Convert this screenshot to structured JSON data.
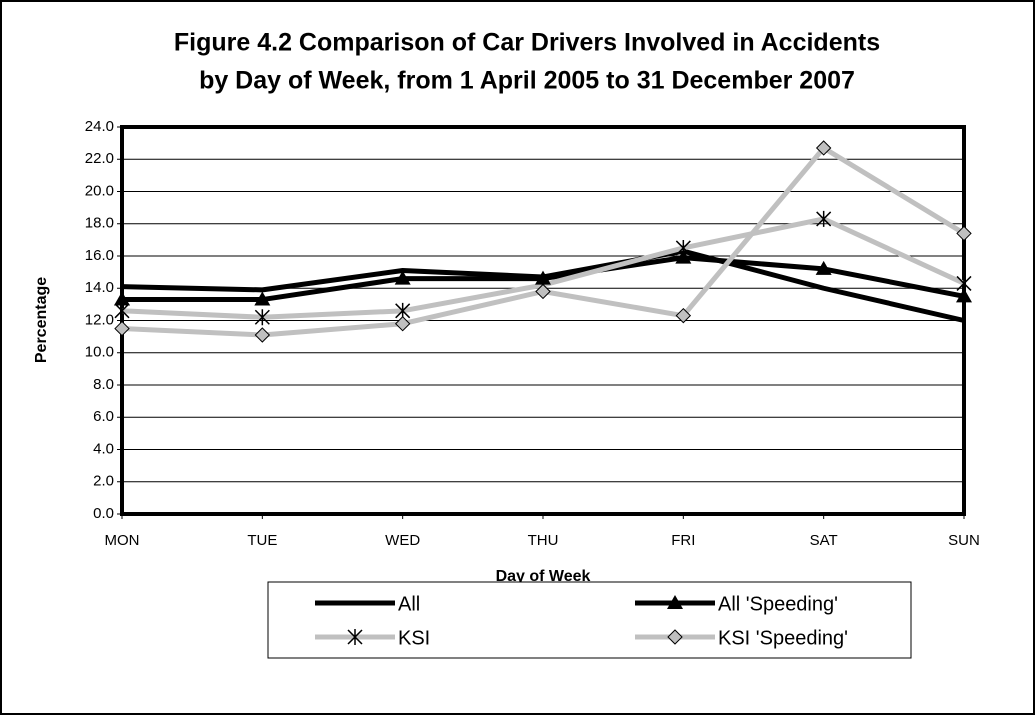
{
  "chart_data": {
    "type": "line",
    "title": "Figure 4.2 Comparison of Car Drivers Involved in Accidents",
    "subtitle": "by Day of Week, from 1 April 2005 to 31 December 2007",
    "x_label": "Day of Week",
    "y_label": "Percentage",
    "categories": [
      "MON",
      "TUE",
      "WED",
      "THU",
      "FRI",
      "SAT",
      "SUN"
    ],
    "series": [
      {
        "name": "All",
        "color": "#000000",
        "marker": "none",
        "values": [
          14.1,
          13.9,
          15.1,
          14.7,
          16.3,
          14.0,
          12.0
        ]
      },
      {
        "name": "All 'Speeding'",
        "color": "#000000",
        "marker": "triangle",
        "values": [
          13.3,
          13.3,
          14.6,
          14.6,
          15.9,
          15.2,
          13.5
        ]
      },
      {
        "name": "KSI",
        "color": "#c0c0c0",
        "marker": "asterisk",
        "values": [
          12.6,
          12.2,
          12.6,
          14.2,
          16.5,
          18.3,
          14.3
        ]
      },
      {
        "name": "KSI 'Speeding'",
        "color": "#c0c0c0",
        "marker": "diamond",
        "values": [
          11.5,
          11.1,
          11.8,
          13.8,
          12.3,
          22.7,
          17.4
        ]
      }
    ],
    "ylim": [
      0,
      24
    ],
    "yticks": [
      {
        "value": 0,
        "label": "0.0"
      },
      {
        "value": 2,
        "label": "2.0"
      },
      {
        "value": 4,
        "label": "4.0"
      },
      {
        "value": 6,
        "label": "6.0"
      },
      {
        "value": 8,
        "label": "8.0"
      },
      {
        "value": 10,
        "label": "10.0"
      },
      {
        "value": 12,
        "label": "12.0"
      },
      {
        "value": 14,
        "label": "14.0"
      },
      {
        "value": 16,
        "label": "16.0"
      },
      {
        "value": 18,
        "label": "18.0"
      },
      {
        "value": 20,
        "label": "20.0"
      },
      {
        "value": 22,
        "label": "22.0"
      },
      {
        "value": 24,
        "label": "24.0"
      }
    ],
    "grid": true,
    "legend": "bottom"
  }
}
